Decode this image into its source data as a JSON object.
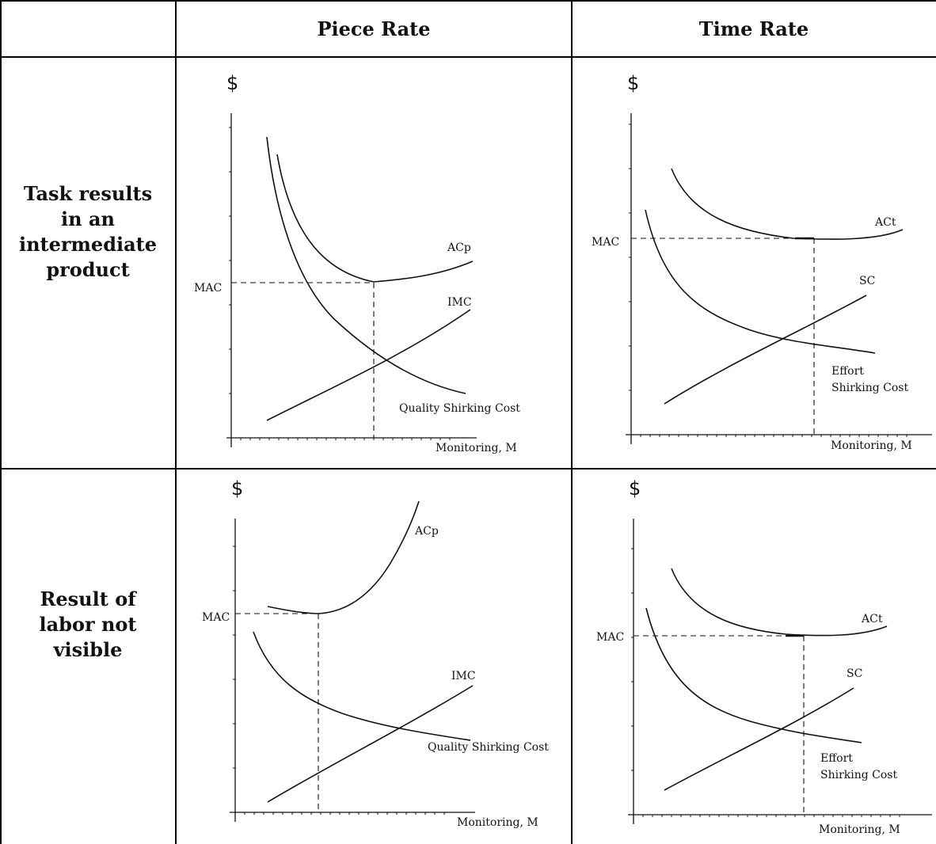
{
  "columns": [
    "Piece Rate",
    "Time Rate"
  ],
  "rows": [
    "Task results in an intermediate product",
    "Result of labor not visible"
  ],
  "panels": [
    {
      "id": "piece-intermediate",
      "y_label": "$",
      "x_label": "Monitoring, M",
      "mac_label": "MAC",
      "curve_labels": {
        "avg_cost": "ACp",
        "monitoring_cost": "IMC",
        "shirking_cost": "Quality Shirking Cost"
      }
    },
    {
      "id": "time-intermediate",
      "y_label": "$",
      "x_label": "Monitoring, M",
      "mac_label": "MAC",
      "curve_labels": {
        "avg_cost": "ACt",
        "monitoring_cost": "SC",
        "shirking_cost_line1": "Effort",
        "shirking_cost_line2": "Shirking Cost"
      }
    },
    {
      "id": "piece-not-visible",
      "y_label": "$",
      "x_label": "Monitoring, M",
      "mac_label": "MAC",
      "curve_labels": {
        "avg_cost": "ACp",
        "monitoring_cost": "IMC",
        "shirking_cost": "Quality Shirking Cost"
      }
    },
    {
      "id": "time-not-visible",
      "y_label": "$",
      "x_label": "Monitoring, M",
      "mac_label": "MAC",
      "curve_labels": {
        "avg_cost": "ACt",
        "monitoring_cost": "SC",
        "shirking_cost_line1": "Effort",
        "shirking_cost_line2": "Shirking Cost"
      }
    }
  ]
}
